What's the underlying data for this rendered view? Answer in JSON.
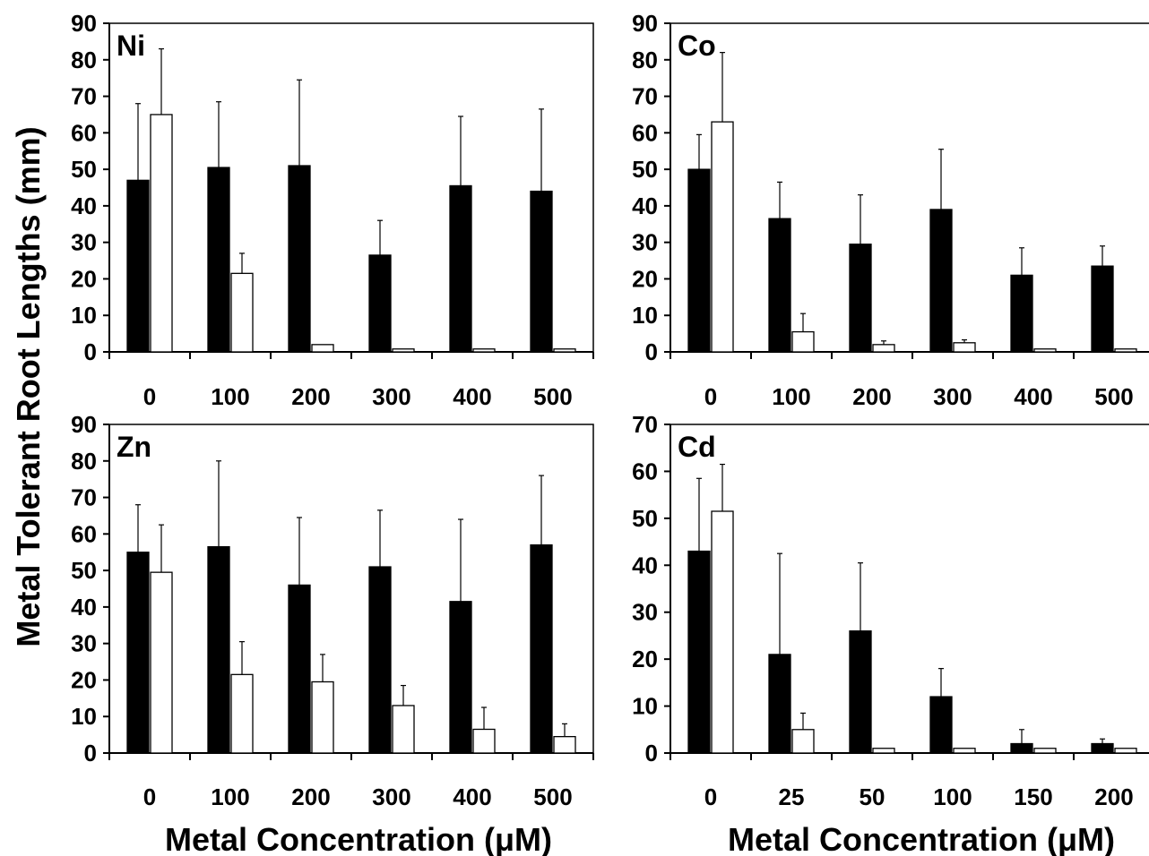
{
  "figure": {
    "ylabel": "Metal Tolerant Root Lengths (mm)",
    "xlabel": "Metal Concentration (μM)"
  },
  "chart_data": [
    {
      "type": "bar",
      "title": "Ni",
      "categories": [
        "0",
        "100",
        "200",
        "300",
        "400",
        "500"
      ],
      "ylim": [
        0,
        90
      ],
      "yticks": [
        "0",
        "10",
        "20",
        "30",
        "40",
        "50",
        "60",
        "70",
        "80",
        "90"
      ],
      "series": [
        {
          "color": "#000000",
          "values": [
            47,
            50.5,
            51,
            26.5,
            45.5,
            44
          ],
          "errors": [
            21,
            18,
            23.5,
            9.5,
            19,
            22.5
          ]
        },
        {
          "color": "#ffffff",
          "values": [
            65,
            21.5,
            2,
            0.8,
            0.8,
            0.8
          ],
          "errors": [
            18,
            5.5,
            0,
            0,
            0,
            0
          ]
        }
      ],
      "grid": false
    },
    {
      "type": "bar",
      "title": "Co",
      "categories": [
        "0",
        "100",
        "200",
        "300",
        "400",
        "500"
      ],
      "ylim": [
        0,
        90
      ],
      "yticks": [
        "0",
        "10",
        "20",
        "30",
        "40",
        "50",
        "60",
        "70",
        "80",
        "90"
      ],
      "series": [
        {
          "color": "#000000",
          "values": [
            50,
            36.5,
            29.5,
            39,
            21,
            23.5
          ],
          "errors": [
            9.5,
            10,
            13.5,
            16.5,
            7.5,
            5.5
          ]
        },
        {
          "color": "#ffffff",
          "values": [
            63,
            5.5,
            2,
            2.5,
            0.8,
            0.8
          ],
          "errors": [
            19,
            5,
            1,
            0.8,
            0,
            0
          ]
        }
      ],
      "grid": false
    },
    {
      "type": "bar",
      "title": "Zn",
      "categories": [
        "0",
        "100",
        "200",
        "300",
        "400",
        "500"
      ],
      "ylim": [
        0,
        90
      ],
      "yticks": [
        "0",
        "10",
        "20",
        "30",
        "40",
        "50",
        "60",
        "70",
        "80",
        "90"
      ],
      "series": [
        {
          "color": "#000000",
          "values": [
            55,
            56.5,
            46,
            51,
            41.5,
            57
          ],
          "errors": [
            13,
            23.5,
            18.5,
            15.5,
            22.5,
            19
          ]
        },
        {
          "color": "#ffffff",
          "values": [
            49.5,
            21.5,
            19.5,
            13,
            6.5,
            4.5
          ],
          "errors": [
            13,
            9,
            7.5,
            5.5,
            6,
            3.5
          ]
        }
      ],
      "grid": false
    },
    {
      "type": "bar",
      "title": "Cd",
      "categories": [
        "0",
        "25",
        "50",
        "100",
        "150",
        "200"
      ],
      "ylim": [
        0,
        70
      ],
      "yticks": [
        "0",
        "10",
        "20",
        "30",
        "40",
        "50",
        "60",
        "70"
      ],
      "series": [
        {
          "color": "#000000",
          "values": [
            43,
            21,
            26,
            12,
            2,
            2
          ],
          "errors": [
            15.5,
            21.5,
            14.5,
            6,
            3,
            1
          ]
        },
        {
          "color": "#ffffff",
          "values": [
            51.5,
            5,
            1,
            1,
            1,
            1
          ],
          "errors": [
            10,
            3.5,
            0,
            0,
            0,
            0
          ]
        }
      ],
      "grid": false
    }
  ]
}
